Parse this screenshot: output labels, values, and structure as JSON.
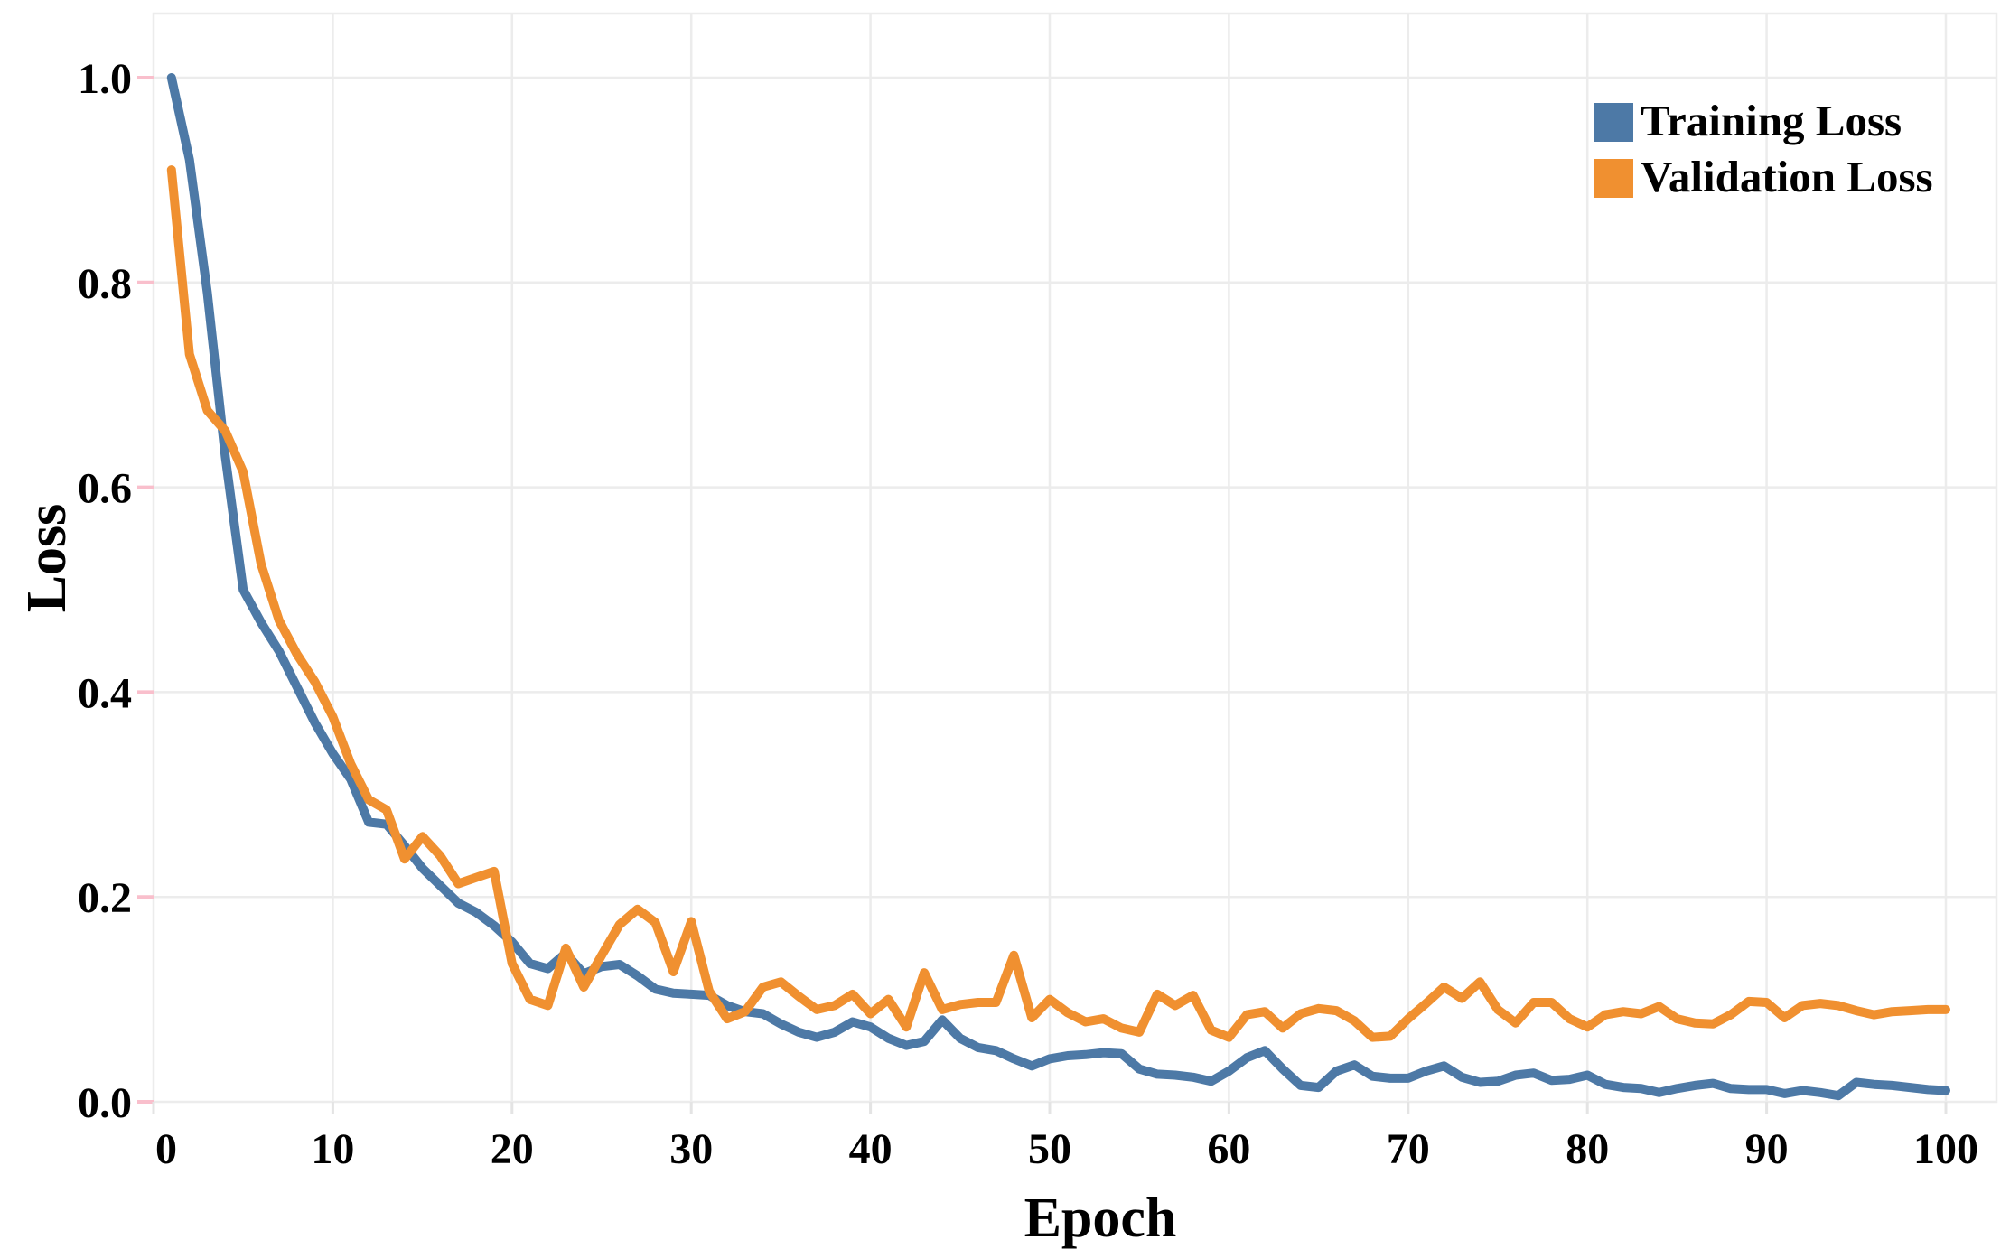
{
  "chart_data": {
    "type": "line",
    "title": "",
    "xlabel": "Epoch",
    "ylabel": "Loss",
    "xlim": [
      0,
      103
    ],
    "ylim": [
      0,
      1.06
    ],
    "grid": true,
    "legend_position": "top-right",
    "x_ticks": [
      0,
      10,
      20,
      30,
      40,
      50,
      60,
      70,
      80,
      90,
      100
    ],
    "x_tick_labels": [
      "0",
      "10",
      "20",
      "30",
      "40",
      "50",
      "60",
      "70",
      "80",
      "90",
      "100"
    ],
    "y_ticks": [
      0.0,
      0.2,
      0.4,
      0.6,
      0.8,
      1.0
    ],
    "y_tick_labels": [
      "0.0",
      "0.2",
      "0.4",
      "0.6",
      "0.8",
      "1.0"
    ],
    "x": [
      1,
      2,
      3,
      4,
      5,
      6,
      7,
      8,
      9,
      10,
      11,
      12,
      13,
      14,
      15,
      16,
      17,
      18,
      19,
      20,
      21,
      22,
      23,
      24,
      25,
      26,
      27,
      28,
      29,
      30,
      31,
      32,
      33,
      34,
      35,
      36,
      37,
      38,
      39,
      40,
      41,
      42,
      43,
      44,
      45,
      46,
      47,
      48,
      49,
      50,
      51,
      52,
      53,
      54,
      55,
      56,
      57,
      58,
      59,
      60,
      61,
      62,
      63,
      64,
      65,
      66,
      67,
      68,
      69,
      70,
      71,
      72,
      73,
      74,
      75,
      76,
      77,
      78,
      79,
      80,
      81,
      82,
      83,
      84,
      85,
      86,
      87,
      88,
      89,
      90,
      91,
      92,
      93,
      94,
      95,
      96,
      97,
      98,
      99,
      100
    ],
    "series": [
      {
        "name": "Training Loss",
        "color": "#4d79a6",
        "values": [
          1.0,
          0.92,
          0.79,
          0.63,
          0.5,
          0.468,
          0.44,
          0.405,
          0.37,
          0.34,
          0.315,
          0.273,
          0.271,
          0.25,
          0.228,
          0.211,
          0.194,
          0.185,
          0.172,
          0.156,
          0.135,
          0.13,
          0.145,
          0.125,
          0.132,
          0.134,
          0.123,
          0.11,
          0.106,
          0.105,
          0.104,
          0.094,
          0.088,
          0.086,
          0.076,
          0.068,
          0.063,
          0.068,
          0.078,
          0.073,
          0.062,
          0.055,
          0.059,
          0.08,
          0.062,
          0.053,
          0.05,
          0.042,
          0.035,
          0.042,
          0.045,
          0.046,
          0.048,
          0.047,
          0.032,
          0.027,
          0.026,
          0.024,
          0.02,
          0.03,
          0.043,
          0.05,
          0.032,
          0.016,
          0.014,
          0.03,
          0.036,
          0.025,
          0.023,
          0.023,
          0.03,
          0.035,
          0.024,
          0.019,
          0.02,
          0.026,
          0.028,
          0.021,
          0.022,
          0.026,
          0.017,
          0.014,
          0.013,
          0.009,
          0.013,
          0.016,
          0.018,
          0.013,
          0.012,
          0.012,
          0.008,
          0.011,
          0.009,
          0.006,
          0.019,
          0.017,
          0.016,
          0.014,
          0.012,
          0.011
        ]
      },
      {
        "name": "Validation Loss",
        "color": "#f09030",
        "values": [
          0.91,
          0.73,
          0.675,
          0.655,
          0.615,
          0.525,
          0.47,
          0.437,
          0.41,
          0.376,
          0.33,
          0.295,
          0.285,
          0.237,
          0.259,
          0.24,
          0.213,
          0.219,
          0.225,
          0.135,
          0.1,
          0.094,
          0.15,
          0.112,
          0.143,
          0.173,
          0.188,
          0.175,
          0.127,
          0.176,
          0.108,
          0.081,
          0.088,
          0.112,
          0.117,
          0.103,
          0.09,
          0.094,
          0.105,
          0.086,
          0.1,
          0.073,
          0.126,
          0.09,
          0.095,
          0.097,
          0.097,
          0.143,
          0.082,
          0.1,
          0.087,
          0.078,
          0.081,
          0.072,
          0.068,
          0.105,
          0.094,
          0.104,
          0.07,
          0.063,
          0.085,
          0.088,
          0.072,
          0.086,
          0.091,
          0.089,
          0.079,
          0.063,
          0.064,
          0.081,
          0.096,
          0.112,
          0.101,
          0.117,
          0.09,
          0.077,
          0.097,
          0.097,
          0.081,
          0.073,
          0.085,
          0.088,
          0.086,
          0.093,
          0.081,
          0.077,
          0.076,
          0.085,
          0.098,
          0.097,
          0.082,
          0.094,
          0.096,
          0.094,
          0.089,
          0.085,
          0.088,
          0.089,
          0.09,
          0.09
        ]
      }
    ]
  },
  "colors": {
    "background": "#ffffff",
    "gridline": "#ececec",
    "tick_mark": "#f9bfcc",
    "axis_tick_stub": "#e4e4e4",
    "text": "#000000"
  },
  "legend": {
    "items": [
      {
        "label": "Training Loss"
      },
      {
        "label": "Validation Loss"
      }
    ]
  }
}
